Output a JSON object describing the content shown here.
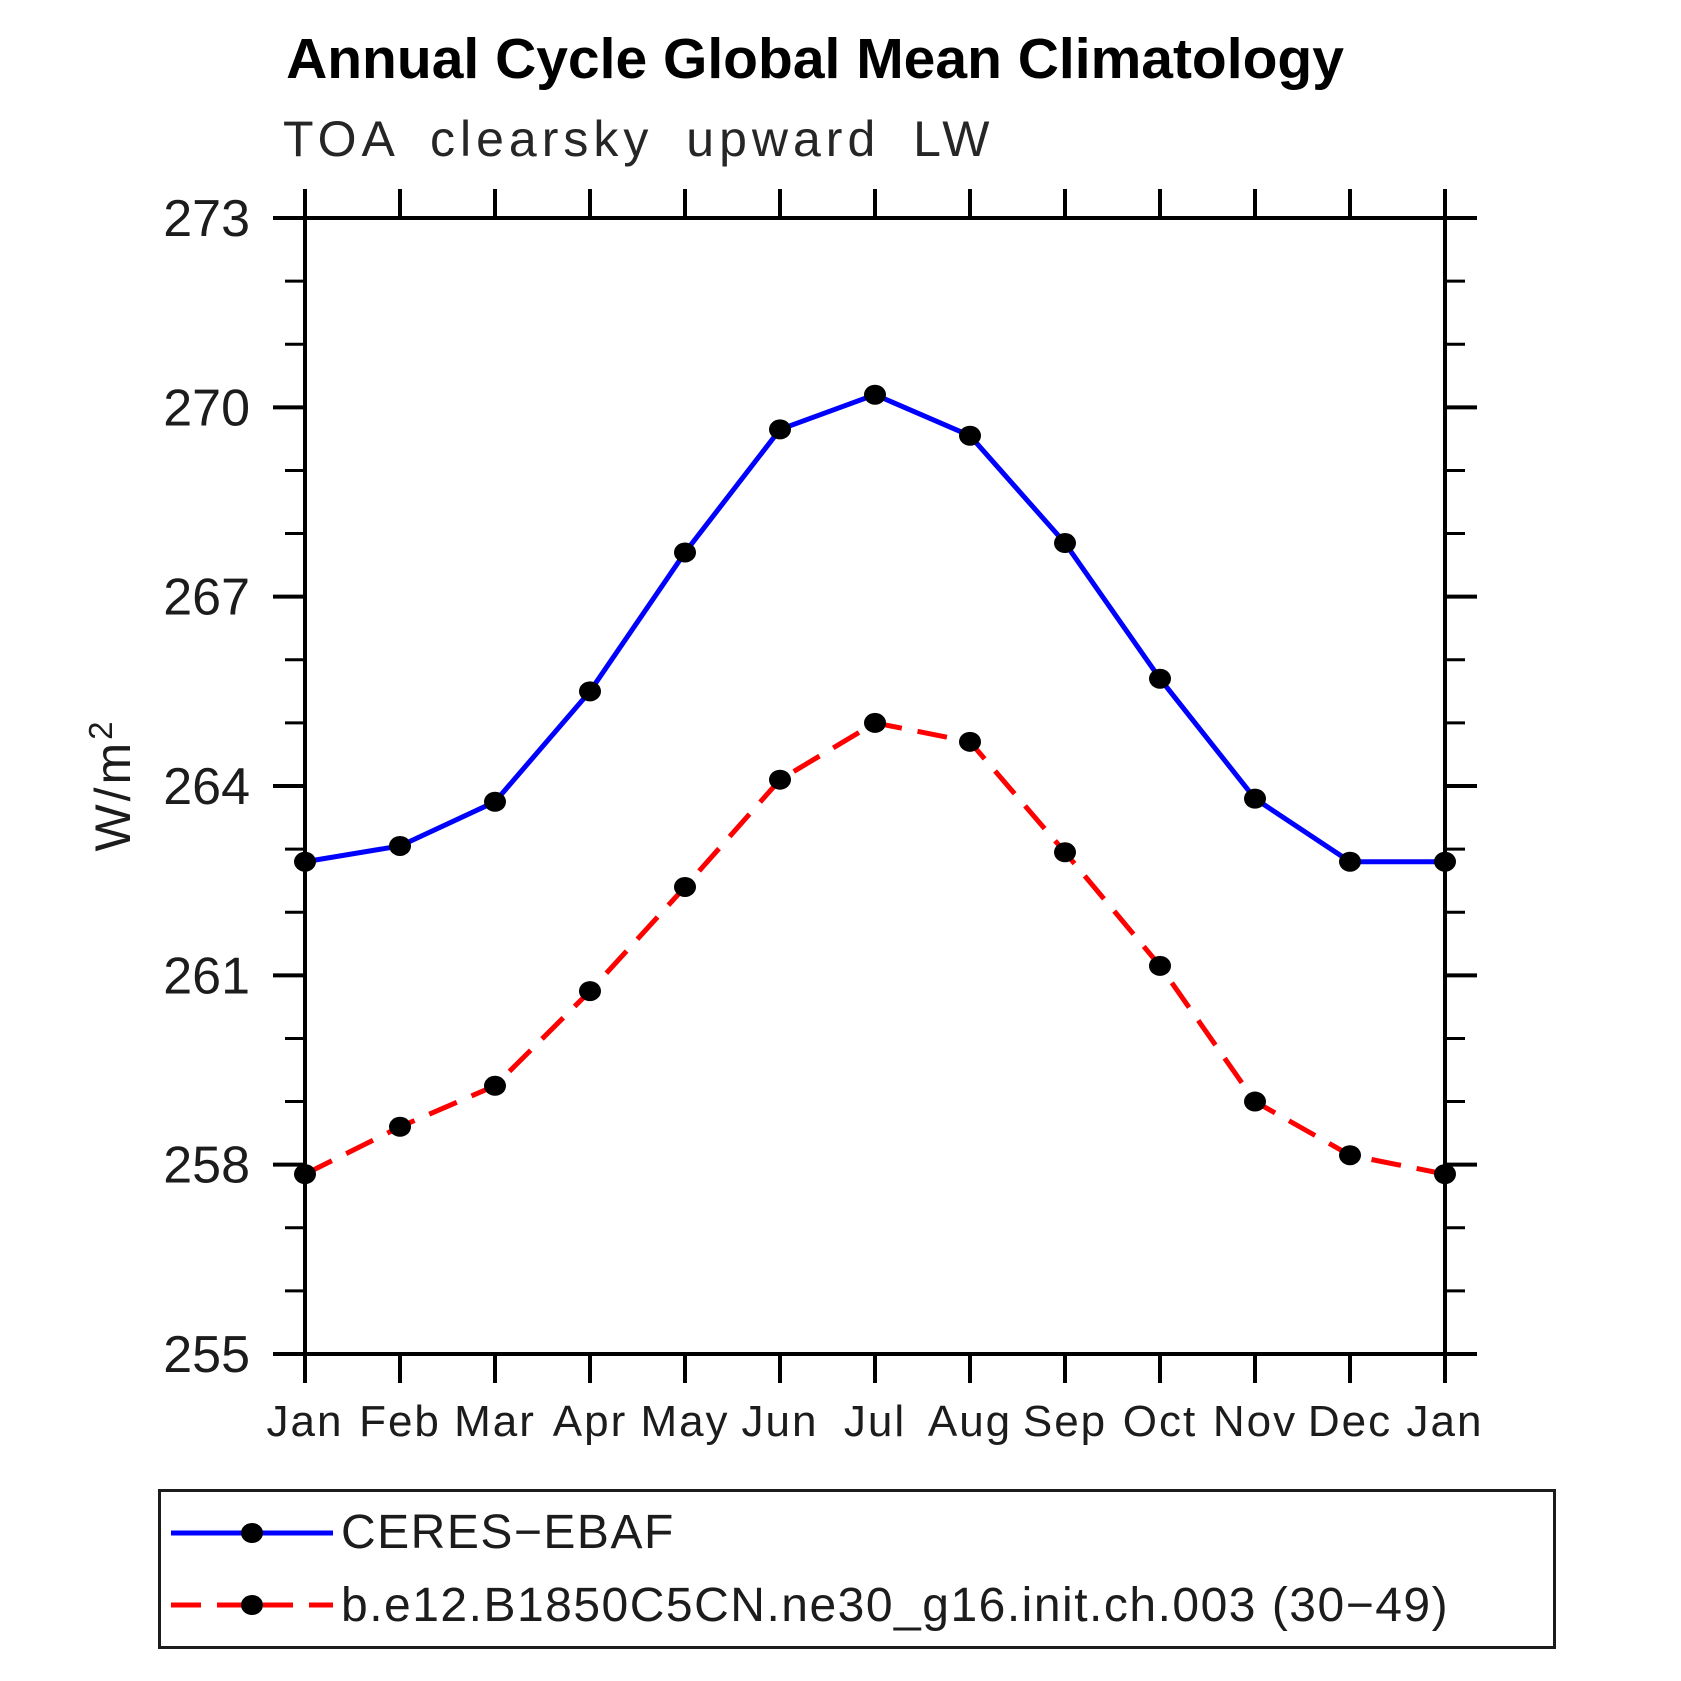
{
  "title": "Annual Cycle Global Mean Climatology",
  "subtitle": "TOA clearsky upward LW",
  "chart_data": {
    "type": "line",
    "title": "Annual Cycle Global Mean Climatology",
    "subtitle": "TOA clearsky upward LW",
    "ylabel": "W/m",
    "ylabel_sup": "2",
    "x_categories": [
      "Jan",
      "Feb",
      "Mar",
      "Apr",
      "May",
      "Jun",
      "Jul",
      "Aug",
      "Sep",
      "Oct",
      "Nov",
      "Dec",
      "Jan"
    ],
    "ylim": [
      255,
      273
    ],
    "y_major_ticks": [
      255,
      258,
      261,
      264,
      267,
      270,
      273
    ],
    "y_minor_step": 1,
    "grid": false,
    "legend_position": "bottom",
    "frame_color": "#000000",
    "series": [
      {
        "name": "CERES−EBAF",
        "color": "#0000ff",
        "style": "solid",
        "marker": "filled-circle",
        "marker_color": "#000000",
        "values": [
          262.8,
          263.05,
          263.75,
          265.5,
          267.7,
          269.65,
          270.2,
          269.55,
          267.85,
          265.7,
          263.8,
          262.8,
          262.8
        ]
      },
      {
        "name": "b.e12.B1850C5CN.ne30_g16.init.ch.003 (30−49)",
        "color": "#ff0000",
        "style": "dashed",
        "marker": "filled-circle",
        "marker_color": "#000000",
        "values": [
          257.85,
          258.6,
          259.25,
          260.75,
          262.4,
          264.1,
          265.0,
          264.7,
          262.95,
          261.15,
          259.0,
          258.15,
          257.85
        ]
      }
    ]
  }
}
